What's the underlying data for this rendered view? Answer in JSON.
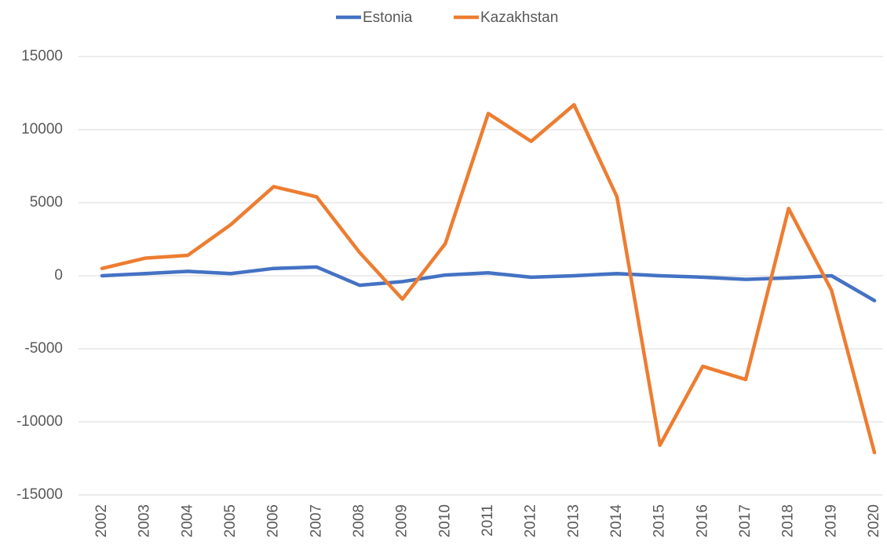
{
  "chart_data": {
    "type": "line",
    "categories": [
      "2002",
      "2003",
      "2004",
      "2005",
      "2006",
      "2007",
      "2008",
      "2009",
      "2010",
      "2011",
      "2012",
      "2013",
      "2014",
      "2015",
      "2016",
      "2017",
      "2018",
      "2019",
      "2020"
    ],
    "series": [
      {
        "name": "Estonia",
        "color": "#4472c4",
        "values": [
          0,
          150,
          300,
          150,
          500,
          600,
          -650,
          -400,
          50,
          200,
          -100,
          0,
          150,
          0,
          -100,
          -250,
          -150,
          0,
          -1700
        ]
      },
      {
        "name": "Kazakhstan",
        "color": "#ed7d31",
        "values": [
          500,
          1200,
          1400,
          3500,
          6100,
          5400,
          1600,
          -1600,
          2200,
          11100,
          9200,
          11700,
          5400,
          -11600,
          -6200,
          -7100,
          4600,
          -1000,
          -12100
        ]
      }
    ],
    "ylim": [
      -15000,
      15000
    ],
    "yticks": [
      -15000,
      -10000,
      -5000,
      0,
      5000,
      10000,
      15000
    ],
    "grid": true,
    "legend": "top"
  }
}
